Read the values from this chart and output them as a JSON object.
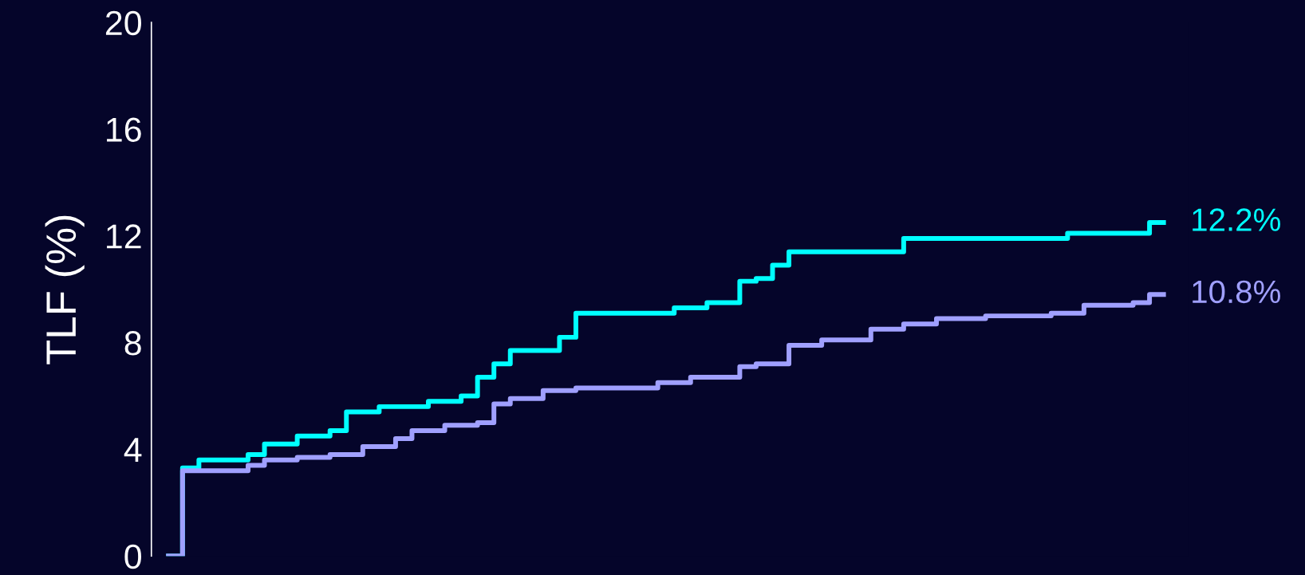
{
  "chart_data": {
    "type": "step",
    "ylabel": "TLF (%)",
    "categories": [
      null,
      null,
      null,
      null,
      null,
      null,
      null,
      null,
      null,
      null,
      null,
      null,
      null,
      null,
      null,
      null,
      null,
      null,
      null,
      null,
      null,
      null,
      null,
      null,
      null,
      null,
      null,
      null,
      null,
      null,
      null,
      null,
      null,
      null,
      null,
      null,
      null,
      null,
      null,
      null,
      null,
      null,
      null,
      null,
      null,
      null,
      null,
      null,
      null,
      null,
      null,
      null,
      null,
      null,
      null,
      null,
      null,
      null,
      null,
      null,
      null,
      null
    ],
    "series": [
      {
        "color": "#00ffff",
        "values": [
          0,
          3.3,
          3.6,
          3.6,
          3.6,
          3.8,
          4.2,
          4.2,
          4.5,
          4.5,
          4.7,
          5.4,
          5.4,
          5.6,
          5.6,
          5.6,
          5.8,
          5.8,
          6.0,
          6.7,
          7.2,
          7.7,
          7.7,
          7.7,
          8.2,
          9.1,
          9.1,
          9.1,
          9.1,
          9.1,
          9.1,
          9.3,
          9.3,
          9.5,
          9.5,
          10.3,
          10.4,
          10.9,
          11.4,
          11.4,
          11.4,
          11.4,
          11.4,
          11.4,
          11.4,
          11.9,
          11.9,
          11.9,
          11.9,
          11.9,
          11.9,
          11.9,
          11.9,
          11.9,
          11.9,
          12.1,
          12.1,
          12.1,
          12.1,
          12.1,
          12.5,
          12.5
        ]
      },
      {
        "color": "#a0a0ff",
        "values": [
          0,
          3.2,
          3.2,
          3.2,
          3.2,
          3.4,
          3.6,
          3.6,
          3.7,
          3.7,
          3.8,
          3.8,
          4.1,
          4.1,
          4.4,
          4.7,
          4.7,
          4.9,
          4.9,
          5.0,
          5.7,
          5.9,
          5.9,
          6.2,
          6.2,
          6.3,
          6.3,
          6.3,
          6.3,
          6.3,
          6.5,
          6.5,
          6.7,
          6.7,
          6.7,
          7.1,
          7.2,
          7.2,
          7.9,
          7.9,
          8.1,
          8.1,
          8.1,
          8.5,
          8.5,
          8.7,
          8.7,
          8.9,
          8.9,
          8.9,
          9.0,
          9.0,
          9.0,
          9.0,
          9.1,
          9.1,
          9.4,
          9.4,
          9.4,
          9.5,
          9.8,
          9.8
        ]
      }
    ],
    "annotations": [
      "12.2%",
      "10.8%"
    ],
    "ylim": [
      0,
      20
    ],
    "yticks": [
      0,
      4,
      8,
      12,
      16,
      20
    ],
    "grid": false,
    "legend": false,
    "tick_labels": "y"
  }
}
